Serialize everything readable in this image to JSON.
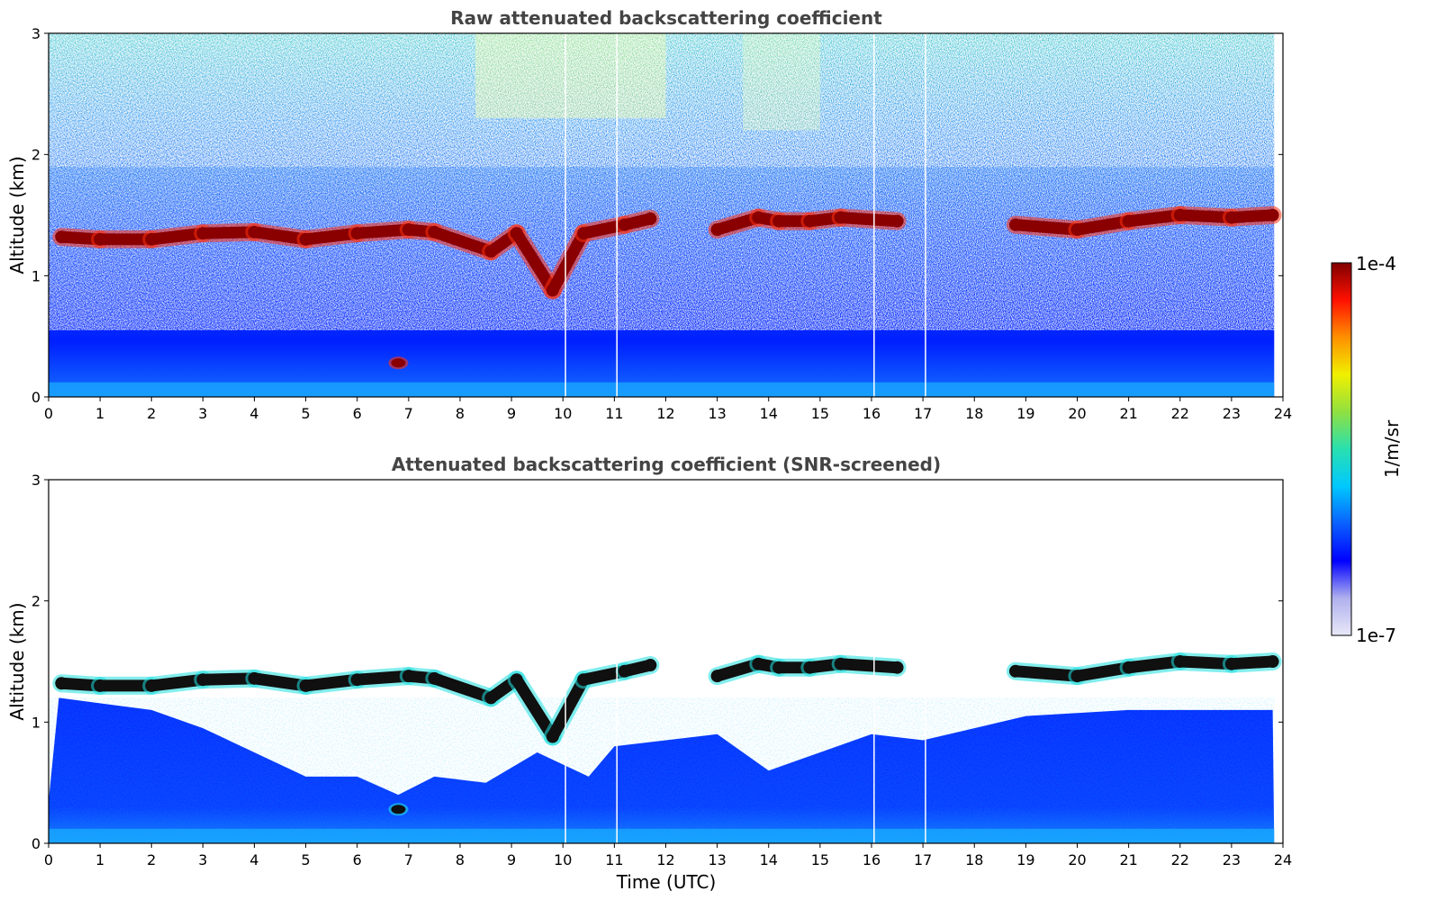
{
  "chart_data": [
    {
      "type": "heatmap",
      "title": "Raw attenuated backscattering coefficient",
      "xlabel": "",
      "ylabel": "Altitude (km)",
      "xlim": [
        0,
        24
      ],
      "ylim": [
        0,
        3
      ],
      "x_ticks": [
        0,
        1,
        2,
        3,
        4,
        5,
        6,
        7,
        8,
        9,
        10,
        11,
        12,
        13,
        14,
        15,
        16,
        17,
        18,
        19,
        20,
        21,
        22,
        23,
        24
      ],
      "y_ticks": [
        0,
        1,
        2,
        3
      ],
      "grid": false,
      "colorscale": "jet",
      "value_range": [
        "1e-7",
        "1e-4"
      ],
      "features": {
        "cloud_base_layer": [
          {
            "t": 0.25,
            "alt": 1.32
          },
          {
            "t": 1.0,
            "alt": 1.3
          },
          {
            "t": 2.0,
            "alt": 1.3
          },
          {
            "t": 3.0,
            "alt": 1.35
          },
          {
            "t": 4.0,
            "alt": 1.36
          },
          {
            "t": 5.0,
            "alt": 1.3
          },
          {
            "t": 6.0,
            "alt": 1.35
          },
          {
            "t": 7.0,
            "alt": 1.38
          },
          {
            "t": 7.5,
            "alt": 1.36
          },
          {
            "t": 8.6,
            "alt": 1.2
          },
          {
            "t": 9.1,
            "alt": 1.35
          },
          {
            "t": 9.8,
            "alt": 0.88
          },
          {
            "t": 10.4,
            "alt": 1.35
          },
          {
            "t": 11.2,
            "alt": 1.42
          },
          {
            "t": 11.7,
            "alt": 1.47
          },
          {
            "t": 13.0,
            "alt": 1.38
          },
          {
            "t": 13.8,
            "alt": 1.48
          },
          {
            "t": 14.2,
            "alt": 1.45
          },
          {
            "t": 14.8,
            "alt": 1.45
          },
          {
            "t": 15.4,
            "alt": 1.48
          },
          {
            "t": 16.5,
            "alt": 1.45
          },
          {
            "t": 18.8,
            "alt": 1.42
          },
          {
            "t": 20.0,
            "alt": 1.38
          },
          {
            "t": 21.0,
            "alt": 1.45
          },
          {
            "t": 22.0,
            "alt": 1.5
          },
          {
            "t": 23.0,
            "alt": 1.48
          },
          {
            "t": 23.8,
            "alt": 1.5
          }
        ],
        "low_cloud": {
          "t": 6.8,
          "alt": 0.28
        },
        "data_gaps_t": [
          10.05,
          11.05,
          16.05,
          17.05
        ]
      }
    },
    {
      "type": "heatmap",
      "title": "Attenuated backscattering coefficient (SNR-screened)",
      "xlabel": "Time (UTC)",
      "ylabel": "Altitude (km)",
      "xlim": [
        0,
        24
      ],
      "ylim": [
        0,
        3
      ],
      "x_ticks": [
        0,
        1,
        2,
        3,
        4,
        5,
        6,
        7,
        8,
        9,
        10,
        11,
        12,
        13,
        14,
        15,
        16,
        17,
        18,
        19,
        20,
        21,
        22,
        23,
        24
      ],
      "y_ticks": [
        0,
        1,
        2,
        3
      ],
      "grid": false,
      "colorscale": "jet",
      "value_range": [
        "1e-7",
        "1e-4"
      ],
      "features": {
        "signal_top": [
          {
            "t": 0,
            "alt": 0.35
          },
          {
            "t": 0.2,
            "alt": 1.2
          },
          {
            "t": 2.0,
            "alt": 1.1
          },
          {
            "t": 3.0,
            "alt": 0.95
          },
          {
            "t": 4.0,
            "alt": 0.75
          },
          {
            "t": 5.0,
            "alt": 0.55
          },
          {
            "t": 6.0,
            "alt": 0.55
          },
          {
            "t": 6.8,
            "alt": 0.4
          },
          {
            "t": 7.5,
            "alt": 0.55
          },
          {
            "t": 8.5,
            "alt": 0.5
          },
          {
            "t": 9.5,
            "alt": 0.75
          },
          {
            "t": 10.5,
            "alt": 0.55
          },
          {
            "t": 11.0,
            "alt": 0.8
          },
          {
            "t": 12.0,
            "alt": 0.85
          },
          {
            "t": 13.0,
            "alt": 0.9
          },
          {
            "t": 14.0,
            "alt": 0.6
          },
          {
            "t": 15.0,
            "alt": 0.75
          },
          {
            "t": 16.0,
            "alt": 0.9
          },
          {
            "t": 17.0,
            "alt": 0.85
          },
          {
            "t": 18.0,
            "alt": 0.95
          },
          {
            "t": 19.0,
            "alt": 1.05
          },
          {
            "t": 21.0,
            "alt": 1.1
          },
          {
            "t": 23.8,
            "alt": 1.1
          }
        ],
        "cloud_base_layer": [
          {
            "t": 0.25,
            "alt": 1.32
          },
          {
            "t": 1.0,
            "alt": 1.3
          },
          {
            "t": 2.0,
            "alt": 1.3
          },
          {
            "t": 3.0,
            "alt": 1.35
          },
          {
            "t": 4.0,
            "alt": 1.36
          },
          {
            "t": 5.0,
            "alt": 1.3
          },
          {
            "t": 6.0,
            "alt": 1.35
          },
          {
            "t": 7.0,
            "alt": 1.38
          },
          {
            "t": 7.5,
            "alt": 1.36
          },
          {
            "t": 8.6,
            "alt": 1.2
          },
          {
            "t": 9.1,
            "alt": 1.35
          },
          {
            "t": 9.8,
            "alt": 0.88
          },
          {
            "t": 10.4,
            "alt": 1.35
          },
          {
            "t": 11.2,
            "alt": 1.42
          },
          {
            "t": 11.7,
            "alt": 1.47
          },
          {
            "t": 13.0,
            "alt": 1.38
          },
          {
            "t": 13.8,
            "alt": 1.48
          },
          {
            "t": 14.2,
            "alt": 1.45
          },
          {
            "t": 14.8,
            "alt": 1.45
          },
          {
            "t": 15.4,
            "alt": 1.48
          },
          {
            "t": 16.5,
            "alt": 1.45
          },
          {
            "t": 18.8,
            "alt": 1.42
          },
          {
            "t": 20.0,
            "alt": 1.38
          },
          {
            "t": 21.0,
            "alt": 1.45
          },
          {
            "t": 22.0,
            "alt": 1.5
          },
          {
            "t": 23.0,
            "alt": 1.48
          },
          {
            "t": 23.8,
            "alt": 1.5
          }
        ],
        "low_cloud": {
          "t": 6.8,
          "alt": 0.28
        },
        "data_gaps_t": [
          10.05,
          11.05,
          16.05,
          17.05
        ]
      }
    }
  ],
  "colorbar": {
    "label": "1/m/sr",
    "max_label": "1e-4",
    "min_label": "1e-7",
    "colors": [
      "#e8e8f8",
      "#b0b0ee",
      "#0000ff",
      "#0a60ff",
      "#00c8ff",
      "#28e0b0",
      "#90e040",
      "#f0f000",
      "#ff9000",
      "#ff1000",
      "#800000"
    ]
  }
}
